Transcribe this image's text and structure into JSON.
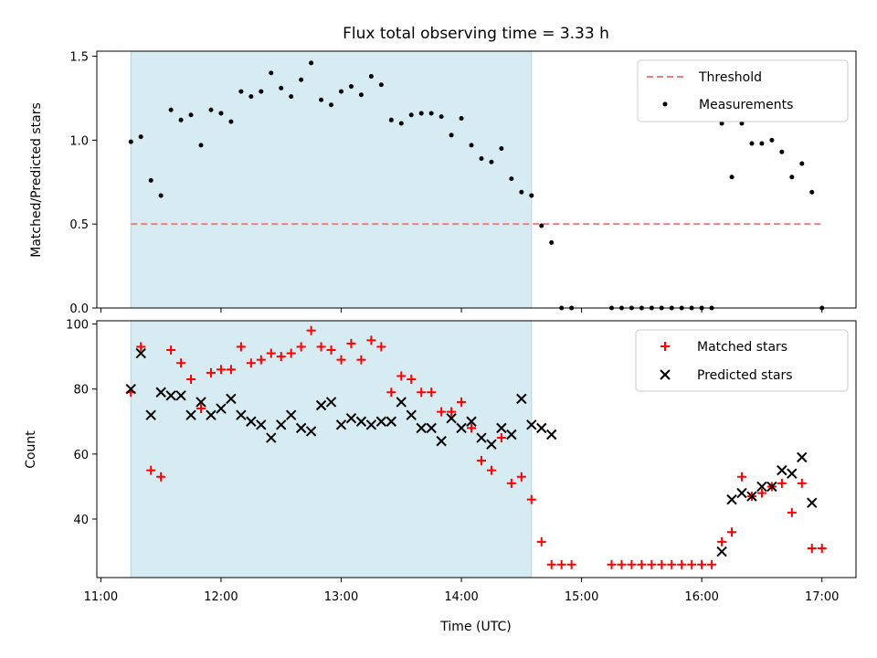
{
  "chart_data": [
    {
      "type": "scatter",
      "title": "Flux total observing time = 3.33 h",
      "xlabel": "",
      "ylabel": "Matched/Predicted stars",
      "xlim": [
        "10:58",
        "17:17"
      ],
      "ylim": [
        0,
        1.53
      ],
      "yticks": [
        "0.0",
        "0.5",
        "1.0",
        "1.5"
      ],
      "shaded_region": {
        "from": "11:15",
        "to": "14:35",
        "color": "#add8e6"
      },
      "threshold": {
        "name": "Threshold",
        "value": 0.5,
        "from": "11:15",
        "to": "17:00",
        "color": "#f08080",
        "style": "dashed"
      },
      "legend": [
        "Threshold",
        "Measurements"
      ],
      "legend_position": "upper right",
      "series": [
        {
          "name": "Measurements",
          "color": "#000000",
          "marker": "dot",
          "points": [
            [
              "11:15",
              0.99
            ],
            [
              "11:20",
              1.02
            ],
            [
              "11:25",
              0.76
            ],
            [
              "11:30",
              0.67
            ],
            [
              "11:35",
              1.18
            ],
            [
              "11:40",
              1.12
            ],
            [
              "11:45",
              1.15
            ],
            [
              "11:50",
              0.97
            ],
            [
              "11:55",
              1.18
            ],
            [
              "12:00",
              1.16
            ],
            [
              "12:05",
              1.11
            ],
            [
              "12:10",
              1.29
            ],
            [
              "12:15",
              1.26
            ],
            [
              "12:20",
              1.29
            ],
            [
              "12:25",
              1.4
            ],
            [
              "12:30",
              1.31
            ],
            [
              "12:35",
              1.26
            ],
            [
              "12:40",
              1.36
            ],
            [
              "12:45",
              1.46
            ],
            [
              "12:50",
              1.24
            ],
            [
              "12:55",
              1.21
            ],
            [
              "13:00",
              1.29
            ],
            [
              "13:05",
              1.32
            ],
            [
              "13:10",
              1.27
            ],
            [
              "13:15",
              1.38
            ],
            [
              "13:20",
              1.33
            ],
            [
              "13:25",
              1.12
            ],
            [
              "13:30",
              1.1
            ],
            [
              "13:35",
              1.15
            ],
            [
              "13:40",
              1.16
            ],
            [
              "13:45",
              1.16
            ],
            [
              "13:50",
              1.14
            ],
            [
              "13:55",
              1.03
            ],
            [
              "14:00",
              1.13
            ],
            [
              "14:05",
              0.97
            ],
            [
              "14:10",
              0.89
            ],
            [
              "14:15",
              0.87
            ],
            [
              "14:20",
              0.95
            ],
            [
              "14:25",
              0.77
            ],
            [
              "14:30",
              0.69
            ],
            [
              "14:35",
              0.67
            ],
            [
              "14:40",
              0.49
            ],
            [
              "14:45",
              0.39
            ],
            [
              "14:50",
              0.0
            ],
            [
              "14:55",
              0.0
            ],
            [
              "15:15",
              0.0
            ],
            [
              "15:20",
              0.0
            ],
            [
              "15:25",
              0.0
            ],
            [
              "15:30",
              0.0
            ],
            [
              "15:35",
              0.0
            ],
            [
              "15:40",
              0.0
            ],
            [
              "15:45",
              0.0
            ],
            [
              "15:50",
              0.0
            ],
            [
              "15:55",
              0.0
            ],
            [
              "16:00",
              0.0
            ],
            [
              "16:05",
              0.0
            ],
            [
              "16:10",
              1.1
            ],
            [
              "16:15",
              0.78
            ],
            [
              "16:20",
              1.1
            ],
            [
              "16:25",
              0.98
            ],
            [
              "16:30",
              0.98
            ],
            [
              "16:35",
              1.0
            ],
            [
              "16:40",
              0.93
            ],
            [
              "16:45",
              0.78
            ],
            [
              "16:50",
              0.86
            ],
            [
              "16:55",
              0.69
            ],
            [
              "17:00",
              0.0
            ]
          ]
        }
      ]
    },
    {
      "type": "scatter",
      "title": "",
      "xlabel": "Time (UTC)",
      "ylabel": "Count",
      "xlim": [
        "10:58",
        "17:17"
      ],
      "ylim": [
        22,
        101
      ],
      "xticks": [
        "11:00",
        "12:00",
        "13:00",
        "14:00",
        "15:00",
        "16:00",
        "17:00"
      ],
      "yticks": [
        "40",
        "60",
        "80",
        "100"
      ],
      "shaded_region": {
        "from": "11:15",
        "to": "14:35",
        "color": "#add8e6"
      },
      "legend": [
        "Matched stars",
        "Predicted stars"
      ],
      "legend_position": "upper right",
      "series": [
        {
          "name": "Matched stars",
          "color": "#ff0000",
          "marker": "plus",
          "points": [
            [
              "11:15",
              79
            ],
            [
              "11:20",
              93
            ],
            [
              "11:25",
              55
            ],
            [
              "11:30",
              53
            ],
            [
              "11:35",
              92
            ],
            [
              "11:40",
              88
            ],
            [
              "11:45",
              83
            ],
            [
              "11:50",
              74
            ],
            [
              "11:55",
              85
            ],
            [
              "12:00",
              86
            ],
            [
              "12:05",
              86
            ],
            [
              "12:10",
              93
            ],
            [
              "12:15",
              88
            ],
            [
              "12:20",
              89
            ],
            [
              "12:25",
              91
            ],
            [
              "12:30",
              90
            ],
            [
              "12:35",
              91
            ],
            [
              "12:40",
              93
            ],
            [
              "12:45",
              98
            ],
            [
              "12:50",
              93
            ],
            [
              "12:55",
              92
            ],
            [
              "13:00",
              89
            ],
            [
              "13:05",
              94
            ],
            [
              "13:10",
              89
            ],
            [
              "13:15",
              95
            ],
            [
              "13:20",
              93
            ],
            [
              "13:25",
              79
            ],
            [
              "13:30",
              84
            ],
            [
              "13:35",
              83
            ],
            [
              "13:40",
              79
            ],
            [
              "13:45",
              79
            ],
            [
              "13:50",
              73
            ],
            [
              "13:55",
              73
            ],
            [
              "14:00",
              76
            ],
            [
              "14:05",
              68
            ],
            [
              "14:10",
              58
            ],
            [
              "14:15",
              55
            ],
            [
              "14:20",
              65
            ],
            [
              "14:25",
              51
            ],
            [
              "14:30",
              53
            ],
            [
              "14:35",
              46
            ],
            [
              "14:40",
              33
            ],
            [
              "14:45",
              26
            ],
            [
              "14:50",
              26
            ],
            [
              "14:55",
              26
            ],
            [
              "15:15",
              26
            ],
            [
              "15:20",
              26
            ],
            [
              "15:25",
              26
            ],
            [
              "15:30",
              26
            ],
            [
              "15:35",
              26
            ],
            [
              "15:40",
              26
            ],
            [
              "15:45",
              26
            ],
            [
              "15:50",
              26
            ],
            [
              "15:55",
              26
            ],
            [
              "16:00",
              26
            ],
            [
              "16:05",
              26
            ],
            [
              "16:10",
              33
            ],
            [
              "16:15",
              36
            ],
            [
              "16:20",
              53
            ],
            [
              "16:25",
              47
            ],
            [
              "16:30",
              48
            ],
            [
              "16:35",
              50
            ],
            [
              "16:40",
              51
            ],
            [
              "16:45",
              42
            ],
            [
              "16:50",
              51
            ],
            [
              "16:55",
              31
            ],
            [
              "17:00",
              31
            ]
          ]
        },
        {
          "name": "Predicted stars",
          "color": "#000000",
          "marker": "x",
          "points": [
            [
              "11:15",
              80
            ],
            [
              "11:20",
              91
            ],
            [
              "11:25",
              72
            ],
            [
              "11:30",
              79
            ],
            [
              "11:35",
              78
            ],
            [
              "11:40",
              78
            ],
            [
              "11:45",
              72
            ],
            [
              "11:50",
              76
            ],
            [
              "11:55",
              72
            ],
            [
              "12:00",
              74
            ],
            [
              "12:05",
              77
            ],
            [
              "12:10",
              72
            ],
            [
              "12:15",
              70
            ],
            [
              "12:20",
              69
            ],
            [
              "12:25",
              65
            ],
            [
              "12:30",
              69
            ],
            [
              "12:35",
              72
            ],
            [
              "12:40",
              68
            ],
            [
              "12:45",
              67
            ],
            [
              "12:50",
              75
            ],
            [
              "12:55",
              76
            ],
            [
              "13:00",
              69
            ],
            [
              "13:05",
              71
            ],
            [
              "13:10",
              70
            ],
            [
              "13:15",
              69
            ],
            [
              "13:20",
              70
            ],
            [
              "13:25",
              70
            ],
            [
              "13:30",
              76
            ],
            [
              "13:35",
              72
            ],
            [
              "13:40",
              68
            ],
            [
              "13:45",
              68
            ],
            [
              "13:50",
              64
            ],
            [
              "13:55",
              71
            ],
            [
              "14:00",
              68
            ],
            [
              "14:05",
              70
            ],
            [
              "14:10",
              65
            ],
            [
              "14:15",
              63
            ],
            [
              "14:20",
              68
            ],
            [
              "14:25",
              66
            ],
            [
              "14:30",
              77
            ],
            [
              "14:35",
              69
            ],
            [
              "14:40",
              68
            ],
            [
              "14:45",
              66
            ],
            [
              "16:10",
              30
            ],
            [
              "16:15",
              46
            ],
            [
              "16:20",
              48
            ],
            [
              "16:25",
              47
            ],
            [
              "16:30",
              50
            ],
            [
              "16:35",
              50
            ],
            [
              "16:40",
              55
            ],
            [
              "16:45",
              54
            ],
            [
              "16:50",
              59
            ],
            [
              "16:55",
              45
            ]
          ]
        }
      ]
    }
  ]
}
